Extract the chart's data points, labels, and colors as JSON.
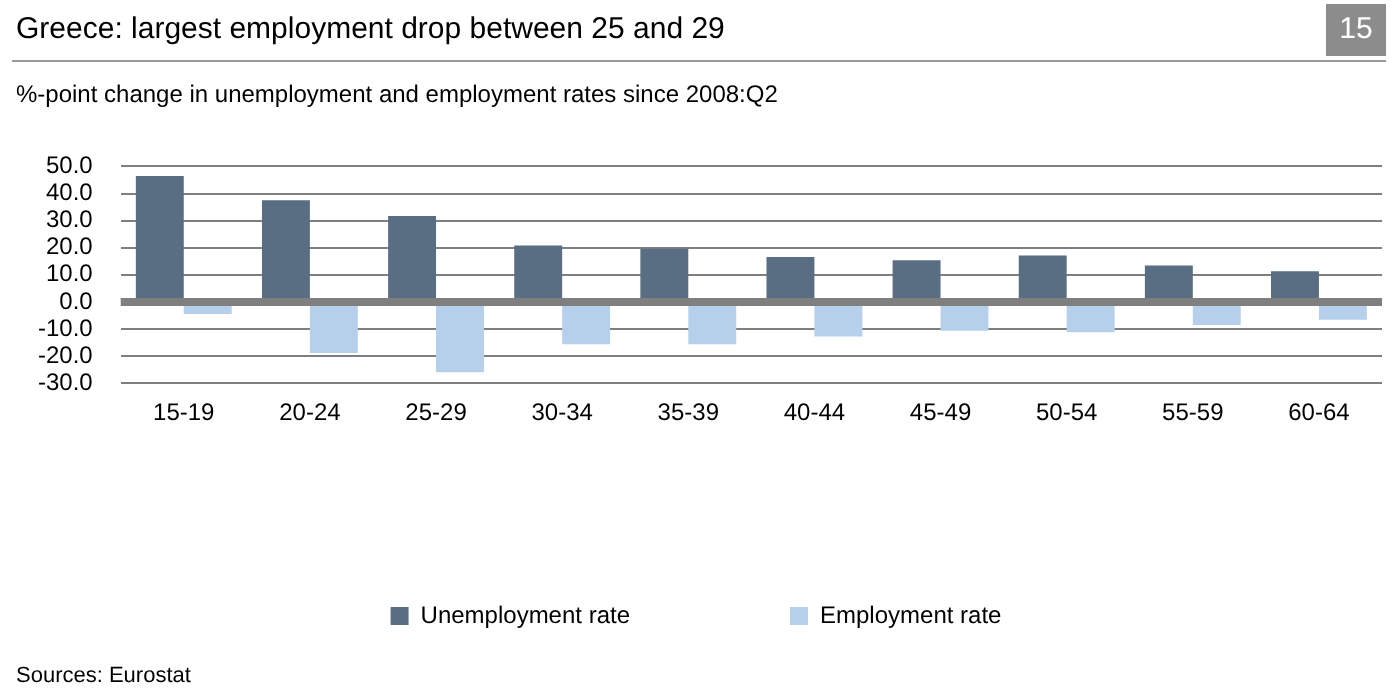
{
  "chart_data": {
    "type": "bar",
    "title": "Greece: largest employment drop between 25 and 29",
    "subtitle": "%-point change in unemployment and employment rates since 2008:Q2",
    "categories": [
      "15-19",
      "20-24",
      "25-29",
      "30-34",
      "35-39",
      "40-44",
      "45-49",
      "50-54",
      "55-59",
      "60-64"
    ],
    "series": [
      {
        "name": "Unemployment rate",
        "color": "#5a6e83",
        "values": [
          46.5,
          37.5,
          31.7,
          20.8,
          19.6,
          16.6,
          15.4,
          17.1,
          13.4,
          11.3
        ]
      },
      {
        "name": "Employment rate",
        "color": "#b6d0ec",
        "values": [
          -4.5,
          -18.9,
          -26.0,
          -15.6,
          -15.6,
          -12.8,
          -10.6,
          -11.2,
          -8.5,
          -6.6
        ]
      }
    ],
    "ylim": [
      -30,
      50
    ],
    "yticks": [
      {
        "value": -30,
        "label": "-30.0"
      },
      {
        "value": -20,
        "label": "-20.0"
      },
      {
        "value": -10,
        "label": "-10.0"
      },
      {
        "value": 0,
        "label": "0.0"
      },
      {
        "value": 10,
        "label": "10.0"
      },
      {
        "value": 20,
        "label": "20.0"
      },
      {
        "value": 30,
        "label": "30.0"
      },
      {
        "value": 40,
        "label": "40.0"
      },
      {
        "value": 50,
        "label": "50.0"
      }
    ],
    "grid": "y",
    "legend": "bottom",
    "ref_lines": [
      {
        "axis": "y",
        "value": 0,
        "color": "#7f7f7f"
      }
    ],
    "annotations": [
      "15",
      "Sources: Eurostat"
    ]
  }
}
